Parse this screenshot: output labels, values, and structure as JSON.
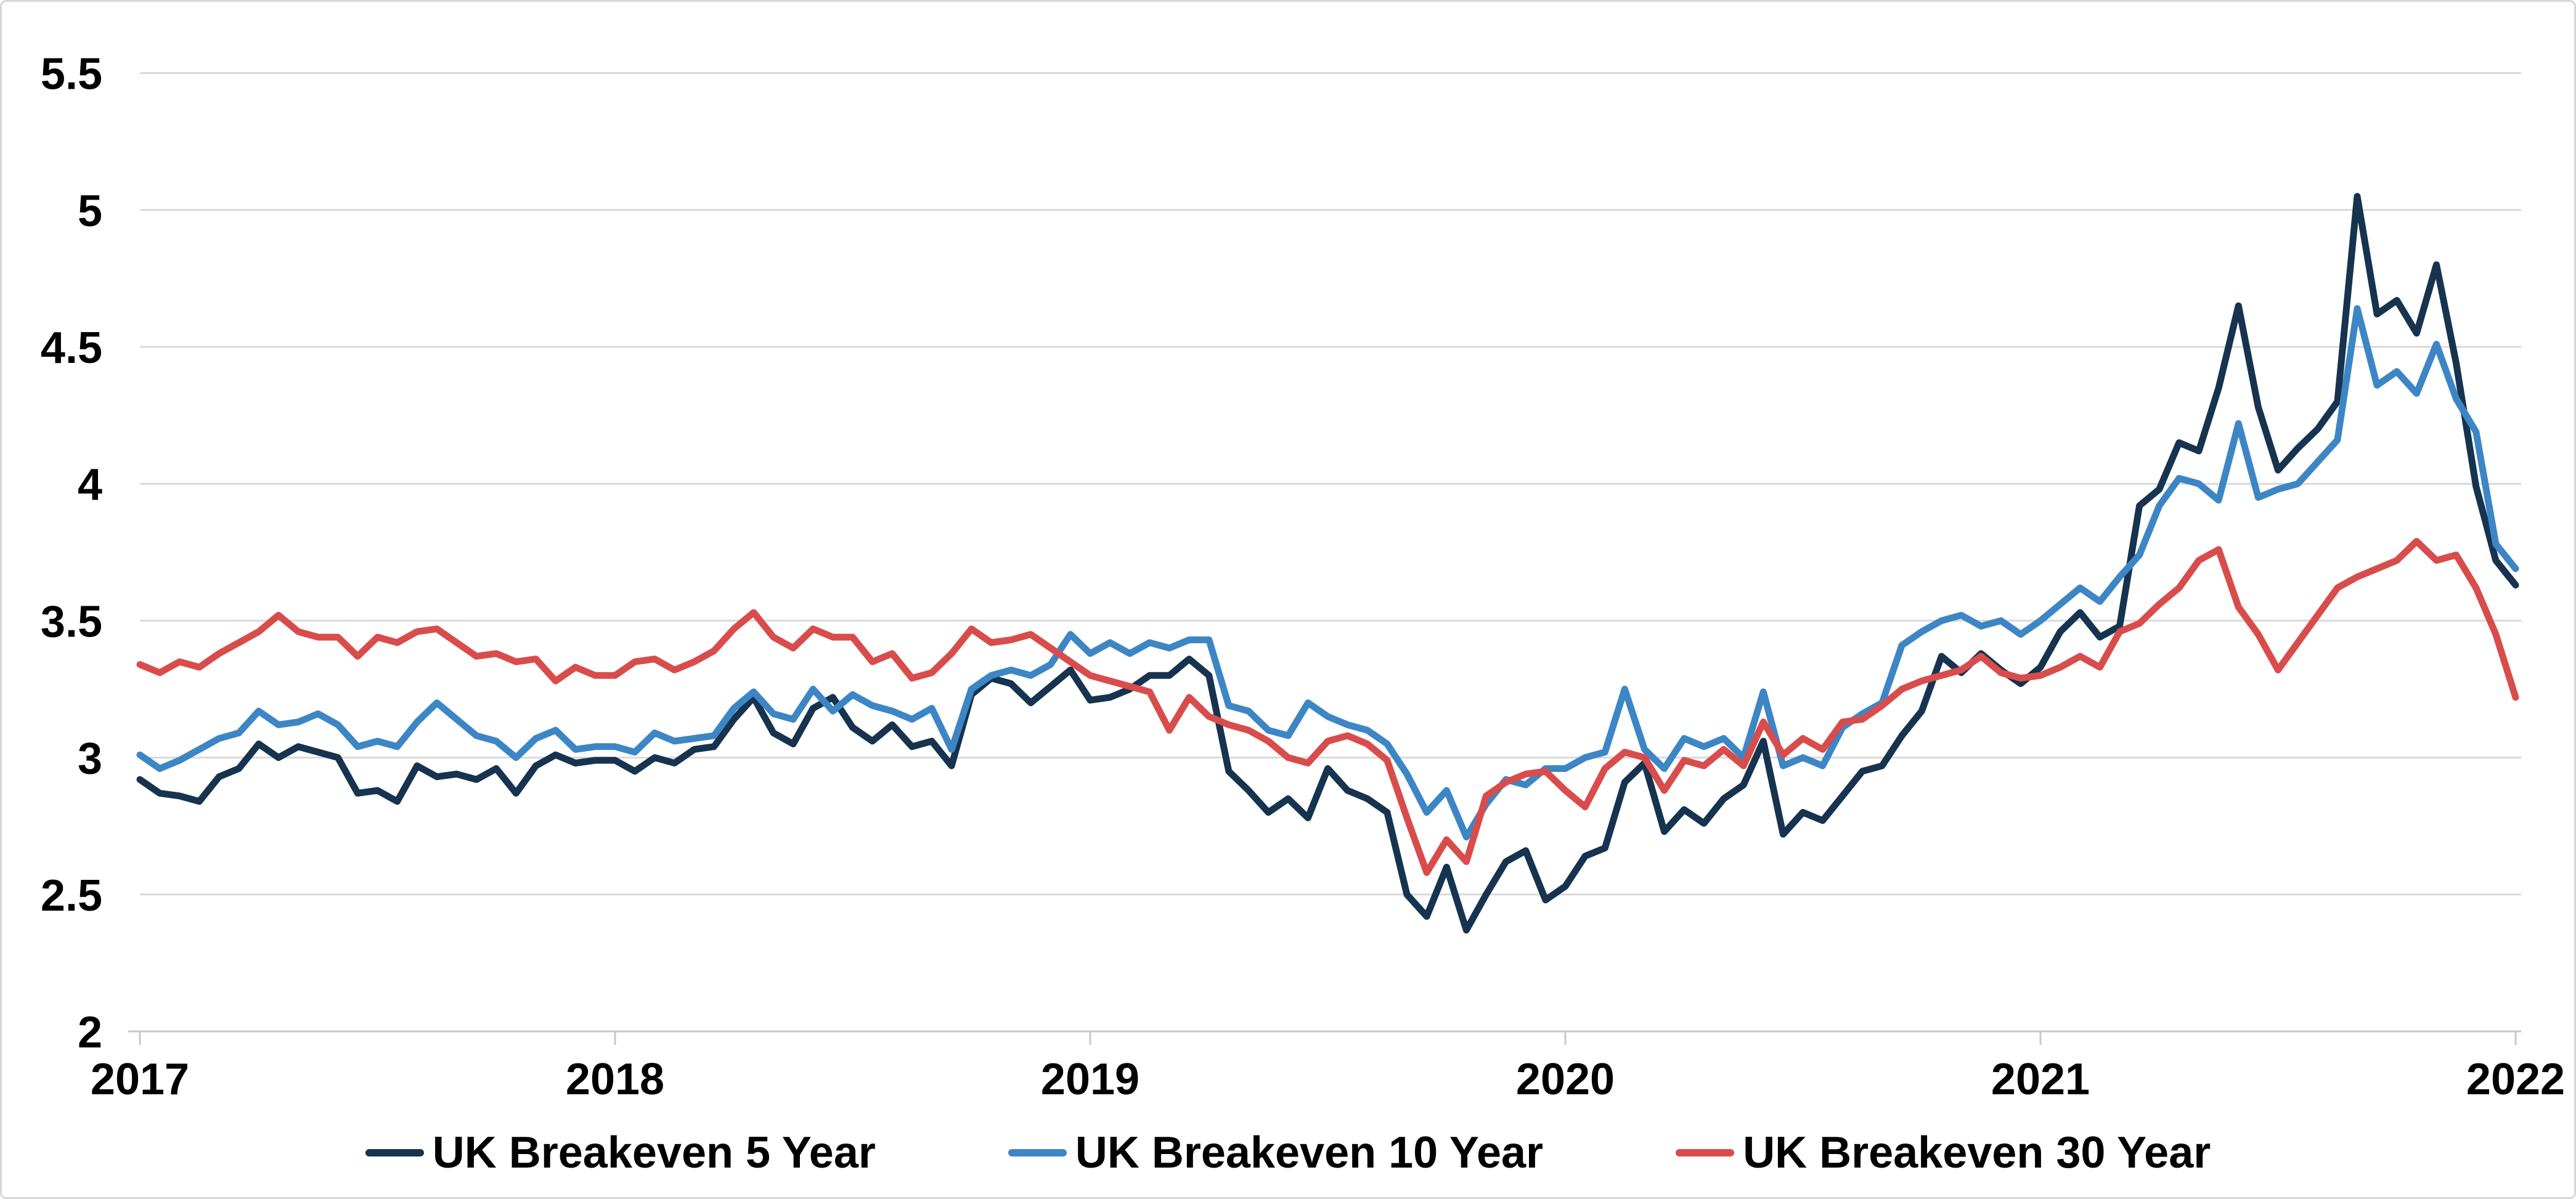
{
  "chart_data": {
    "type": "line",
    "title": "",
    "x_axis": {
      "ticks": [
        2017,
        2018,
        2019,
        2020,
        2021,
        2022
      ],
      "tick_labels": [
        "2017",
        "2018",
        "2019",
        "2020",
        "2021",
        "2022"
      ],
      "range": [
        2017,
        2022
      ]
    },
    "y_axis": {
      "ticks": [
        5.5,
        5,
        4.5,
        4,
        3.5,
        3,
        2.5,
        2
      ],
      "tick_labels": [
        "5.5",
        "5",
        "4.5",
        "4",
        "3.5",
        "3",
        "2.5",
        "2"
      ],
      "range": [
        2,
        5.5
      ],
      "gridlines": true
    },
    "x_start": 2017,
    "x_step_years": 0.041666667,
    "points_per_series": 121,
    "grid_color": "#D9D9D9",
    "axis_color": "#C9C9C9",
    "background": "#FFFFFF",
    "text_color": "#000000",
    "line_width": 11,
    "legend": {
      "position": "bottom",
      "labels": [
        "UK Breakeven 5 Year",
        "UK Breakeven 10 Year",
        "UK Breakeven 30 Year"
      ]
    },
    "series": [
      {
        "name": "UK Breakeven 5 Year",
        "color": "#16334F",
        "values": [
          2.92,
          2.87,
          2.86,
          2.84,
          2.93,
          2.96,
          3.05,
          3.0,
          3.04,
          3.02,
          3.0,
          2.87,
          2.88,
          2.84,
          2.97,
          2.93,
          2.94,
          2.92,
          2.96,
          2.87,
          2.97,
          3.01,
          2.98,
          2.99,
          2.99,
          2.95,
          3.0,
          2.98,
          3.03,
          3.04,
          3.14,
          3.22,
          3.09,
          3.05,
          3.18,
          3.22,
          3.11,
          3.06,
          3.12,
          3.04,
          3.06,
          2.97,
          3.23,
          3.29,
          3.27,
          3.2,
          3.26,
          3.32,
          3.21,
          3.22,
          3.25,
          3.3,
          3.3,
          3.36,
          3.3,
          2.95,
          2.88,
          2.8,
          2.85,
          2.78,
          2.96,
          2.88,
          2.85,
          2.8,
          2.5,
          2.42,
          2.6,
          2.37,
          2.5,
          2.62,
          2.66,
          2.48,
          2.53,
          2.64,
          2.67,
          2.91,
          2.98,
          2.73,
          2.81,
          2.76,
          2.85,
          2.9,
          3.06,
          2.72,
          2.8,
          2.77,
          2.86,
          2.95,
          2.97,
          3.08,
          3.17,
          3.37,
          3.31,
          3.38,
          3.32,
          3.27,
          3.33,
          3.46,
          3.53,
          3.44,
          3.48,
          3.92,
          3.98,
          4.15,
          4.12,
          4.35,
          4.65,
          4.28,
          4.05,
          4.13,
          4.2,
          4.3,
          5.05,
          4.62,
          4.67,
          4.55,
          4.8,
          4.44,
          3.99,
          3.72,
          3.63
        ]
      },
      {
        "name": "UK Breakeven 10 Year",
        "color": "#3D86C5",
        "values": [
          3.01,
          2.96,
          2.99,
          3.03,
          3.07,
          3.09,
          3.17,
          3.12,
          3.13,
          3.16,
          3.12,
          3.04,
          3.06,
          3.04,
          3.13,
          3.2,
          3.14,
          3.08,
          3.06,
          3.0,
          3.07,
          3.1,
          3.03,
          3.04,
          3.04,
          3.02,
          3.09,
          3.06,
          3.07,
          3.08,
          3.18,
          3.24,
          3.16,
          3.14,
          3.25,
          3.17,
          3.23,
          3.19,
          3.17,
          3.14,
          3.18,
          3.03,
          3.25,
          3.3,
          3.32,
          3.3,
          3.34,
          3.45,
          3.38,
          3.42,
          3.38,
          3.42,
          3.4,
          3.43,
          3.43,
          3.19,
          3.17,
          3.1,
          3.08,
          3.2,
          3.15,
          3.12,
          3.1,
          3.05,
          2.94,
          2.8,
          2.88,
          2.71,
          2.83,
          2.92,
          2.9,
          2.96,
          2.96,
          3.0,
          3.02,
          3.25,
          3.03,
          2.96,
          3.07,
          3.04,
          3.07,
          3.0,
          3.24,
          2.97,
          3.0,
          2.97,
          3.11,
          3.16,
          3.2,
          3.41,
          3.46,
          3.5,
          3.52,
          3.48,
          3.5,
          3.45,
          3.5,
          3.56,
          3.62,
          3.57,
          3.66,
          3.74,
          3.92,
          4.02,
          4.0,
          3.94,
          4.22,
          3.95,
          3.98,
          4.0,
          4.08,
          4.16,
          4.64,
          4.36,
          4.41,
          4.33,
          4.51,
          4.31,
          4.19,
          3.78,
          3.69
        ]
      },
      {
        "name": "UK Breakeven 30 Year",
        "color": "#D94C4C",
        "values": [
          3.34,
          3.31,
          3.35,
          3.33,
          3.38,
          3.42,
          3.46,
          3.52,
          3.46,
          3.44,
          3.44,
          3.37,
          3.44,
          3.42,
          3.46,
          3.47,
          3.42,
          3.37,
          3.38,
          3.35,
          3.36,
          3.28,
          3.33,
          3.3,
          3.3,
          3.35,
          3.36,
          3.32,
          3.35,
          3.39,
          3.47,
          3.53,
          3.44,
          3.4,
          3.47,
          3.44,
          3.44,
          3.35,
          3.38,
          3.29,
          3.31,
          3.38,
          3.47,
          3.42,
          3.43,
          3.45,
          3.4,
          3.35,
          3.3,
          3.28,
          3.26,
          3.24,
          3.1,
          3.22,
          3.15,
          3.12,
          3.1,
          3.06,
          3.0,
          2.98,
          3.06,
          3.08,
          3.05,
          2.99,
          2.78,
          2.58,
          2.7,
          2.62,
          2.86,
          2.91,
          2.94,
          2.95,
          2.88,
          2.82,
          2.96,
          3.02,
          3.0,
          2.88,
          2.99,
          2.97,
          3.03,
          2.97,
          3.13,
          3.01,
          3.07,
          3.03,
          3.13,
          3.14,
          3.19,
          3.25,
          3.28,
          3.3,
          3.32,
          3.37,
          3.31,
          3.29,
          3.3,
          3.33,
          3.37,
          3.33,
          3.46,
          3.49,
          3.56,
          3.62,
          3.72,
          3.76,
          3.55,
          3.45,
          3.32,
          3.42,
          3.52,
          3.62,
          3.66,
          3.69,
          3.72,
          3.79,
          3.72,
          3.74,
          3.62,
          3.45,
          3.22
        ]
      }
    ]
  }
}
